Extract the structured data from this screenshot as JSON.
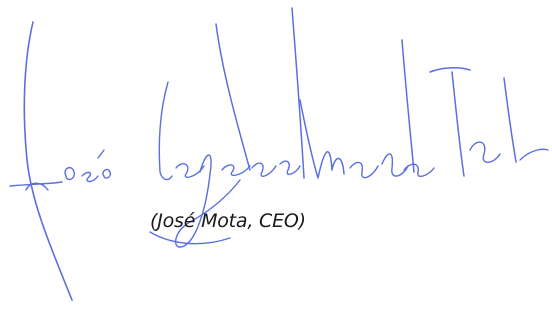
{
  "document": {
    "signature_caption": "(José Mota, CEO)",
    "signature_label": "José Augusto Mota",
    "ink_color": "#5b6fe0",
    "caption_color": "#1a1a1a"
  }
}
